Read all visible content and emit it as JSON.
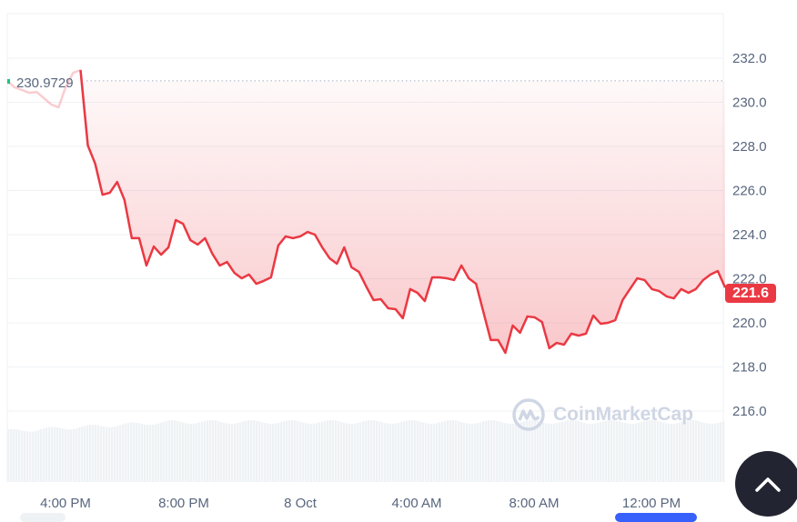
{
  "chart_data": {
    "type": "area",
    "title": "",
    "xlabel": "",
    "ylabel": "",
    "ylim": [
      214.5,
      233
    ],
    "yticks": [
      "216.0",
      "218.0",
      "220.0",
      "222.0",
      "224.0",
      "226.0",
      "228.0",
      "230.0",
      "232.0"
    ],
    "xticks": [
      "4:00 PM",
      "8:00 PM",
      "8 Oct",
      "4:00 AM",
      "8:00 AM",
      "12:00 PM"
    ],
    "grid": true,
    "baseline": {
      "value": 230.9729,
      "label": "230.9729"
    },
    "current": {
      "value": 221.6,
      "label": "221.6"
    },
    "x_start": "7 Oct 14:00",
    "x": [
      "14:00",
      "14:15",
      "14:30",
      "14:45",
      "15:00",
      "15:15",
      "15:30",
      "15:45",
      "16:00",
      "16:15",
      "16:30",
      "16:45",
      "17:00",
      "17:15",
      "17:30",
      "17:45",
      "18:00",
      "18:15",
      "18:30",
      "18:45",
      "19:00",
      "19:15",
      "19:30",
      "19:45",
      "20:00",
      "20:15",
      "20:30",
      "20:45",
      "21:00",
      "21:15",
      "21:30",
      "21:45",
      "22:00",
      "22:15",
      "22:30",
      "22:45",
      "23:00",
      "23:15",
      "23:30",
      "23:45",
      "00:00",
      "00:15",
      "00:30",
      "00:45",
      "01:00",
      "01:15",
      "01:30",
      "01:45",
      "02:00",
      "02:15",
      "02:30",
      "02:45",
      "03:00",
      "03:15",
      "03:30",
      "03:45",
      "04:00",
      "04:15",
      "04:30",
      "04:45",
      "05:00",
      "05:15",
      "05:30",
      "05:45",
      "06:00",
      "06:15",
      "06:30",
      "06:45",
      "07:00",
      "07:15",
      "07:30",
      "07:45",
      "08:00",
      "08:15",
      "08:30",
      "08:45",
      "09:00",
      "09:15",
      "09:30",
      "09:45",
      "10:00",
      "10:15",
      "10:30",
      "10:45",
      "11:00",
      "11:15",
      "11:30",
      "11:45",
      "12:00",
      "12:15",
      "12:30",
      "12:45",
      "13:00",
      "13:15",
      "13:30",
      "13:45",
      "14:00",
      "14:15",
      "14:30"
    ],
    "values": [
      230.97,
      230.68,
      230.56,
      230.43,
      230.47,
      230.19,
      229.9,
      229.77,
      230.72,
      231.34,
      231.46,
      228.04,
      227.22,
      225.81,
      225.9,
      226.39,
      225.57,
      223.84,
      223.84,
      222.6,
      223.46,
      223.09,
      223.42,
      224.66,
      224.49,
      223.75,
      223.55,
      223.84,
      223.13,
      222.6,
      222.76,
      222.27,
      222.02,
      222.19,
      221.77,
      221.9,
      222.06,
      223.51,
      223.92,
      223.84,
      223.92,
      224.12,
      224.0,
      223.42,
      222.93,
      222.68,
      223.42,
      222.52,
      222.31,
      221.65,
      221.03,
      221.07,
      220.66,
      220.62,
      220.21,
      221.53,
      221.36,
      220.99,
      222.06,
      222.06,
      222.02,
      221.94,
      222.6,
      222.02,
      221.77,
      220.49,
      219.22,
      219.22,
      218.64,
      219.88,
      219.55,
      220.29,
      220.25,
      220.04,
      218.85,
      219.09,
      219.01,
      219.51,
      219.42,
      219.51,
      220.33,
      219.96,
      220.0,
      220.12,
      221.03,
      221.53,
      222.02,
      221.94,
      221.53,
      221.44,
      221.2,
      221.11,
      221.53,
      221.36,
      221.53,
      221.94,
      222.19,
      222.35,
      221.6
    ],
    "colors": {
      "line": "#ea3943",
      "above_baseline": "#16c784",
      "grid": "#eff2f5",
      "axis_text": "#58667e",
      "volume": "#eff2f5"
    }
  },
  "watermark": {
    "text": "CoinMarketCap"
  },
  "scroll_top_button": {
    "icon": "chevron-up-icon"
  }
}
